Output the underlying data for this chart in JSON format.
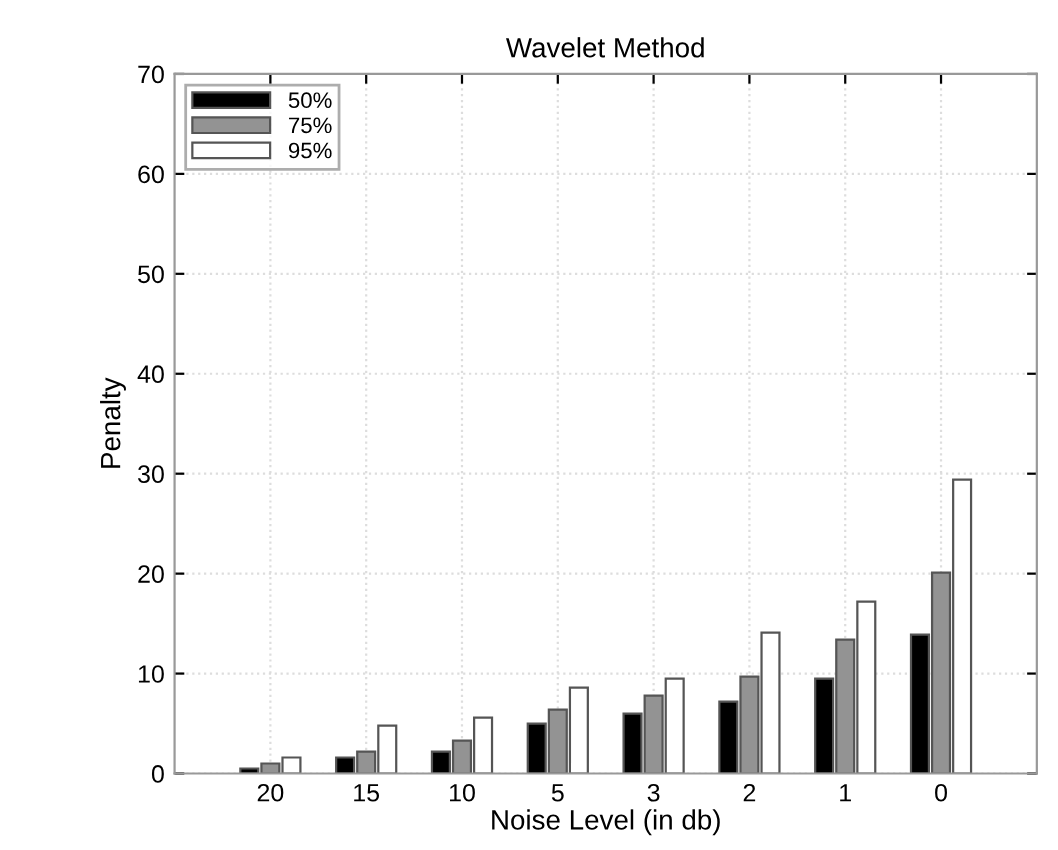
{
  "chart_data": {
    "type": "bar",
    "title": "Wavelet Method",
    "xlabel": "Noise Level (in db)",
    "ylabel": "Penalty",
    "categories": [
      "20",
      "15",
      "10",
      "5",
      "3",
      "2",
      "1",
      "0"
    ],
    "series": [
      {
        "name": "50%",
        "color": "#000000",
        "values": [
          0.5,
          1.6,
          2.2,
          5.0,
          6.0,
          7.2,
          9.5,
          13.9
        ]
      },
      {
        "name": "75%",
        "color": "#939393",
        "values": [
          1.0,
          2.2,
          3.3,
          6.4,
          7.8,
          9.7,
          13.4,
          20.1
        ]
      },
      {
        "name": "95%",
        "color": "#ffffff",
        "values": [
          1.6,
          4.8,
          5.6,
          8.6,
          9.5,
          14.1,
          17.2,
          29.4
        ]
      }
    ],
    "ylim": [
      0,
      70
    ],
    "yticks": [
      0,
      10,
      20,
      30,
      40,
      50,
      60,
      70
    ],
    "grid": true,
    "legend": "top left"
  }
}
